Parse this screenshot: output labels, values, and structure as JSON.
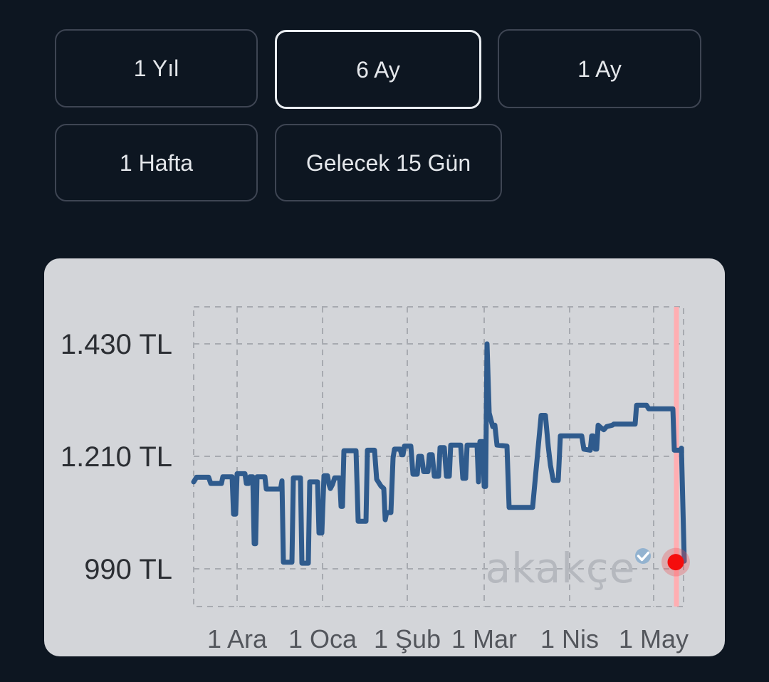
{
  "period_buttons": [
    {
      "label": "1 Yıl",
      "selected": false
    },
    {
      "label": "6 Ay",
      "selected": true
    },
    {
      "label": "1 Ay",
      "selected": false
    },
    {
      "label": "1 Hafta",
      "selected": false
    },
    {
      "label": "Gelecek 15 Gün",
      "selected": false
    }
  ],
  "watermark": {
    "text": "akakçe",
    "badge_icon": "verified-check"
  },
  "colors": {
    "page_bg": "#0d1621",
    "card_bg": "#d3d5d9",
    "grid": "#a7aab0",
    "y_label": "#2b2e33",
    "x_label": "#53565c",
    "price_line": "#2f5b8d",
    "today_line": "#ffaeb2",
    "marker": "#f50d0d",
    "marker_halo": "rgba(240,80,85,0.33)",
    "watermark_text": "#b5b8be",
    "badge": "#93b3d0",
    "selected_border": "#e9edf1",
    "button_border": "#3e4553"
  },
  "chart_data": {
    "type": "line",
    "title": "Price history (6 months), Turkish Lira",
    "currency": "TL",
    "grid": "dashed",
    "x_max": 688,
    "x_note": "x = pixel offset in plot; month-start ticks below",
    "xticks": [
      {
        "label": "1 Ara",
        "pos": 61
      },
      {
        "label": "1 Oca",
        "pos": 181
      },
      {
        "label": "1 Şub",
        "pos": 300
      },
      {
        "label": "1 Mar",
        "pos": 408
      },
      {
        "label": "1 Nis",
        "pos": 528
      },
      {
        "label": "1 May",
        "pos": 646
      }
    ],
    "yticks": [
      {
        "label": "1.430 TL",
        "value": 1430
      },
      {
        "label": "1.210 TL",
        "value": 1210
      },
      {
        "label": "990 TL",
        "value": 990
      }
    ],
    "ylim_top_price": 1502,
    "ylim_bottom_price": 916,
    "today_line_x": 678,
    "marker": {
      "x": 677,
      "price": 1003
    },
    "series": [
      {
        "name": "price",
        "points": [
          [
            0,
            1160
          ],
          [
            4,
            1169
          ],
          [
            21,
            1169
          ],
          [
            24,
            1157
          ],
          [
            39,
            1157
          ],
          [
            41,
            1170
          ],
          [
            54,
            1170
          ],
          [
            56,
            1097
          ],
          [
            59,
            1097
          ],
          [
            61,
            1176
          ],
          [
            72,
            1176
          ],
          [
            74,
            1157
          ],
          [
            77,
            1157
          ],
          [
            79,
            1170
          ],
          [
            83,
            1170
          ],
          [
            85,
            1039
          ],
          [
            87,
            1039
          ],
          [
            89,
            1170
          ],
          [
            100,
            1170
          ],
          [
            102,
            1146
          ],
          [
            122,
            1146
          ],
          [
            124,
            1162
          ],
          [
            126,
            1003
          ],
          [
            138,
            1003
          ],
          [
            140,
            1168
          ],
          [
            150,
            1168
          ],
          [
            152,
            1001
          ],
          [
            161,
            1001
          ],
          [
            163,
            1160
          ],
          [
            174,
            1160
          ],
          [
            176,
            1060
          ],
          [
            180,
            1060
          ],
          [
            183,
            1172
          ],
          [
            188,
            1172
          ],
          [
            190,
            1155
          ],
          [
            192,
            1147
          ],
          [
            195,
            1155
          ],
          [
            198,
            1168
          ],
          [
            205,
            1168
          ],
          [
            207,
            1112
          ],
          [
            209,
            1112
          ],
          [
            211,
            1221
          ],
          [
            228,
            1221
          ],
          [
            231,
            1083
          ],
          [
            242,
            1083
          ],
          [
            244,
            1222
          ],
          [
            254,
            1222
          ],
          [
            257,
            1165
          ],
          [
            263,
            1152
          ],
          [
            267,
            1147
          ],
          [
            269,
            1086
          ],
          [
            271,
            1100
          ],
          [
            277,
            1100
          ],
          [
            280,
            1207
          ],
          [
            282,
            1224
          ],
          [
            290,
            1224
          ],
          [
            292,
            1213
          ],
          [
            294,
            1213
          ],
          [
            296,
            1230
          ],
          [
            305,
            1230
          ],
          [
            308,
            1175
          ],
          [
            314,
            1175
          ],
          [
            316,
            1210
          ],
          [
            320,
            1210
          ],
          [
            323,
            1180
          ],
          [
            329,
            1180
          ],
          [
            331,
            1213
          ],
          [
            335,
            1213
          ],
          [
            338,
            1171
          ],
          [
            344,
            1171
          ],
          [
            346,
            1227
          ],
          [
            352,
            1227
          ],
          [
            355,
            1171
          ],
          [
            359,
            1171
          ],
          [
            361,
            1232
          ],
          [
            375,
            1232
          ],
          [
            378,
            1167
          ],
          [
            382,
            1167
          ],
          [
            384,
            1232
          ],
          [
            398,
            1232
          ],
          [
            400,
            1160
          ],
          [
            402,
            1239
          ],
          [
            406,
            1239
          ],
          [
            408,
            1151
          ],
          [
            410,
            1151
          ],
          [
            412,
            1430
          ],
          [
            415,
            1295
          ],
          [
            420,
            1268
          ],
          [
            423,
            1271
          ],
          [
            426,
            1232
          ],
          [
            440,
            1230
          ],
          [
            443,
            1110
          ],
          [
            476,
            1110
          ],
          [
            488,
            1290
          ],
          [
            494,
            1290
          ],
          [
            498,
            1229
          ],
          [
            501,
            1193
          ],
          [
            505,
            1163
          ],
          [
            512,
            1163
          ],
          [
            515,
            1250
          ],
          [
            545,
            1250
          ],
          [
            548,
            1224
          ],
          [
            557,
            1222
          ],
          [
            559,
            1250
          ],
          [
            561,
            1250
          ],
          [
            564,
            1224
          ],
          [
            566,
            1224
          ],
          [
            568,
            1271
          ],
          [
            572,
            1266
          ],
          [
            576,
            1262
          ],
          [
            580,
            1268
          ],
          [
            588,
            1271
          ],
          [
            590,
            1273
          ],
          [
            620,
            1273
          ],
          [
            622,
            1310
          ],
          [
            636,
            1310
          ],
          [
            639,
            1303
          ],
          [
            673,
            1303
          ],
          [
            675,
            1222
          ],
          [
            684,
            1222
          ],
          [
            685,
            1226
          ],
          [
            689,
            1005
          ]
        ]
      }
    ]
  }
}
